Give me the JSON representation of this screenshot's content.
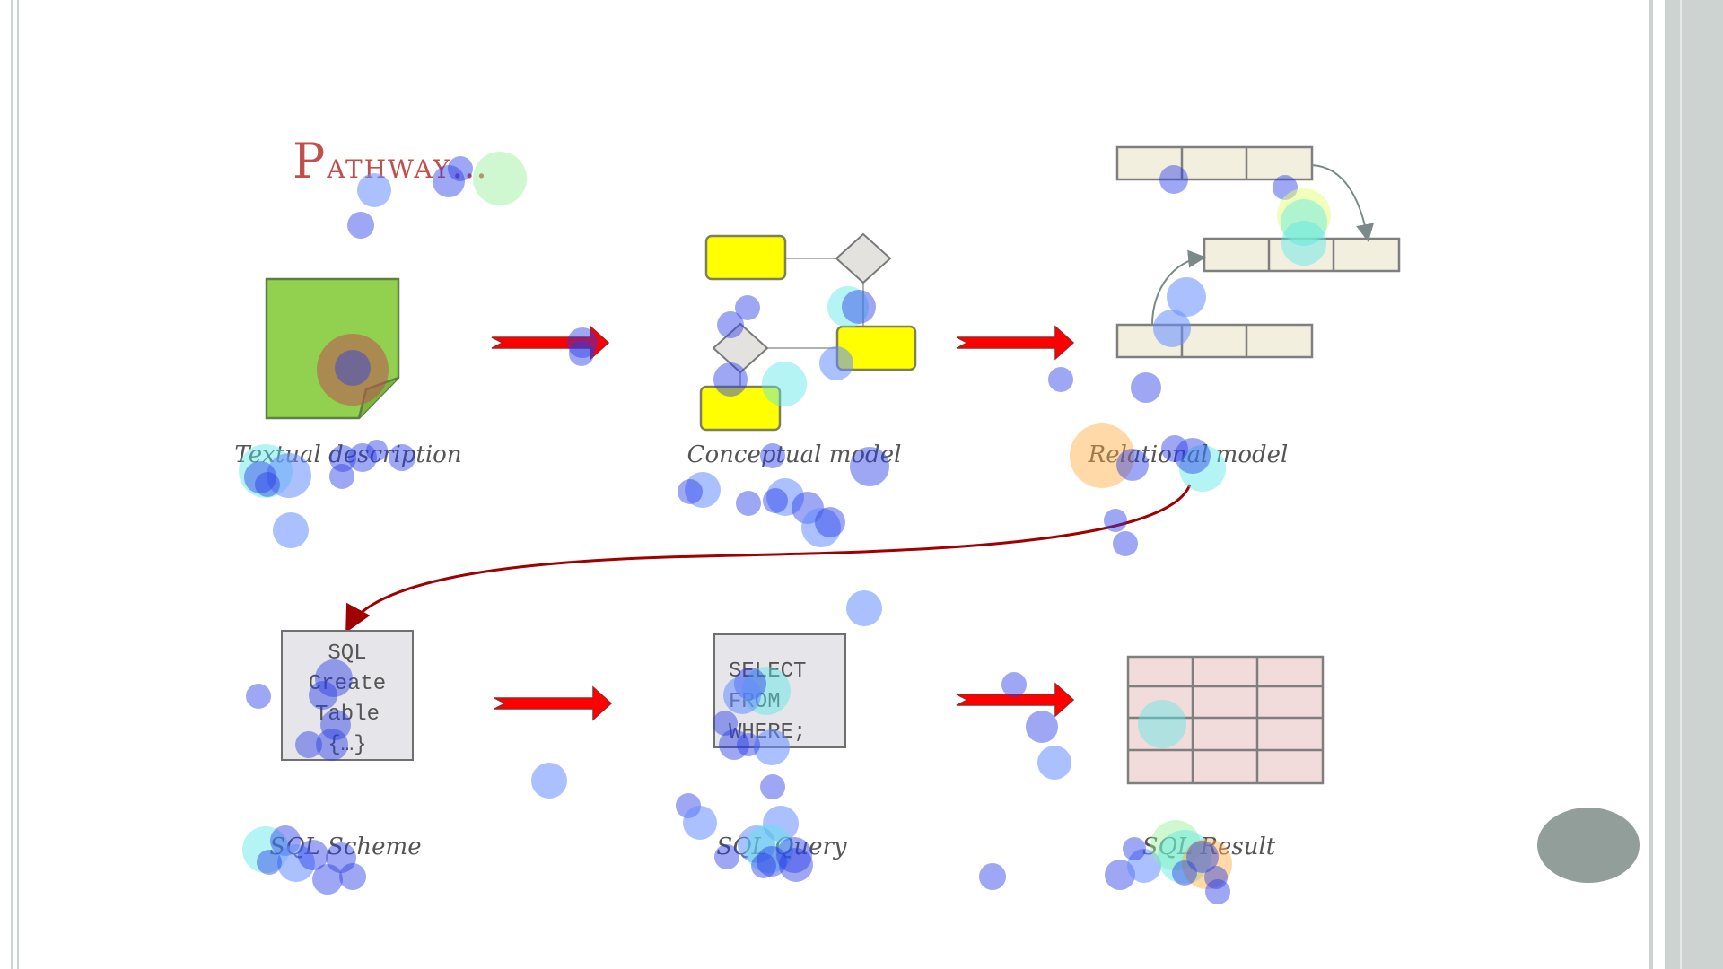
{
  "slide": {
    "title_first": "P",
    "title_rest": "athway…"
  },
  "top_row": {
    "textual": {
      "caption": "Textual description"
    },
    "conceptual": {
      "caption": "Conceptual model"
    },
    "relational": {
      "caption": "Relational model"
    }
  },
  "bottom_row": {
    "scheme": {
      "caption": "SQL Scheme",
      "box_lines": [
        "SQL",
        "Create",
        "Table",
        "{…}"
      ]
    },
    "query": {
      "caption": "SQL Query",
      "box_lines": [
        "SELECT",
        "FROM",
        "WHERE;"
      ]
    },
    "result": {
      "caption": "SQL Result"
    }
  },
  "colors": {
    "title": "#c0504d",
    "arrow": "#ff0000",
    "document_fill": "#92d050",
    "entity_fill": "#ffff00",
    "relation_fill": "#f2efdf",
    "result_fill": "#f2dcdb",
    "connector": "#a00000"
  }
}
